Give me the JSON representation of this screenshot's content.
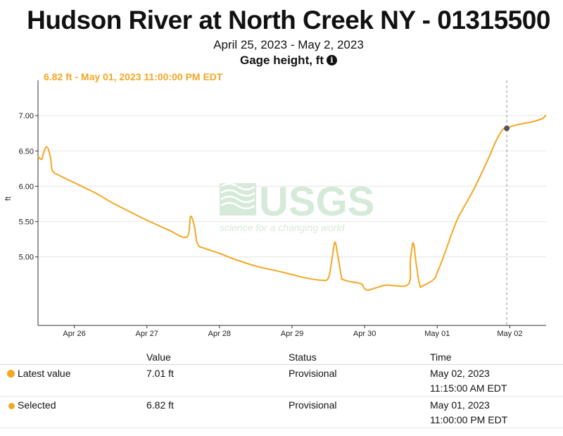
{
  "header": {
    "title": "Hudson River at North Creek NY - 01315500",
    "date_range": "April 25, 2023 - May 2, 2023",
    "parameter": "Gage height, ft",
    "info_icon": "i",
    "selected_readout": "6.82 ft - May 01, 2023 11:00:00 PM EDT"
  },
  "watermark": {
    "brand": "USGS",
    "tagline": "science for a changing world"
  },
  "colors": {
    "series": "#f5a623",
    "grid": "#e4e4e4",
    "marker": "#555555",
    "crosshair": "#999999",
    "watermark": "#d6ead9"
  },
  "chart_data": {
    "type": "line",
    "title": "Gage height, ft",
    "xlabel": "",
    "ylabel": "ft",
    "xlim": [
      -0.5,
      6.5
    ],
    "ylim": [
      4.03,
      7.5
    ],
    "y_ticks": [
      5.0,
      5.5,
      6.0,
      6.5,
      7.0
    ],
    "y_tick_labels": [
      "5.00",
      "5.50",
      "6.00",
      "6.50",
      "7.00"
    ],
    "x_ticks": [
      0,
      1,
      2,
      3,
      4,
      5,
      6
    ],
    "x_tick_labels": [
      "Apr 26",
      "Apr 27",
      "Apr 28",
      "Apr 29",
      "Apr 30",
      "May 01",
      "May 02"
    ],
    "x_unit": "days after Apr 26 00:00",
    "grid": true,
    "series": [
      {
        "name": "Gage height",
        "x": [
          -0.5,
          -0.45,
          -0.43,
          -0.38,
          -0.33,
          -0.3,
          -0.2,
          0,
          0.3,
          0.5,
          0.8,
          1.0,
          1.3,
          1.55,
          1.6,
          1.65,
          1.7,
          1.8,
          2.0,
          2.2,
          2.5,
          2.8,
          3.0,
          3.2,
          3.4,
          3.5,
          3.55,
          3.59,
          3.63,
          3.68,
          3.7,
          3.8,
          3.95,
          4.0,
          4.05,
          4.15,
          4.3,
          4.6,
          4.63,
          4.67,
          4.71,
          4.76,
          4.8,
          4.95,
          5.0,
          5.1,
          5.2,
          5.3,
          5.5,
          5.7,
          5.8,
          5.9,
          5.95,
          6.0,
          6.1,
          6.3,
          6.45,
          6.5
        ],
        "values": [
          6.42,
          6.38,
          6.45,
          6.56,
          6.42,
          6.22,
          6.15,
          6.05,
          5.9,
          5.78,
          5.62,
          5.52,
          5.38,
          5.28,
          5.57,
          5.45,
          5.18,
          5.12,
          5.05,
          4.97,
          4.87,
          4.8,
          4.75,
          4.7,
          4.67,
          4.7,
          4.97,
          5.21,
          5.02,
          4.72,
          4.68,
          4.65,
          4.62,
          4.55,
          4.53,
          4.56,
          4.6,
          4.61,
          4.95,
          5.2,
          4.9,
          4.6,
          4.59,
          4.68,
          4.78,
          5.04,
          5.33,
          5.58,
          5.95,
          6.38,
          6.62,
          6.8,
          6.82,
          6.84,
          6.87,
          6.91,
          6.96,
          7.01
        ]
      }
    ],
    "selected_point": {
      "x": 5.958,
      "y": 6.82
    },
    "latest_point": {
      "x": 6.469,
      "y": 7.01
    }
  },
  "table": {
    "headers": [
      "",
      "Value",
      "Status",
      "Time"
    ],
    "rows": [
      {
        "label": "Latest value",
        "value": "7.01 ft",
        "status": "Provisional",
        "time_date": "May 02, 2023",
        "time_clock": "11:15:00 AM EDT"
      },
      {
        "label": "Selected",
        "value": "6.82 ft",
        "status": "Provisional",
        "time_date": "May 01, 2023",
        "time_clock": "11:00:00 PM EDT"
      }
    ]
  }
}
